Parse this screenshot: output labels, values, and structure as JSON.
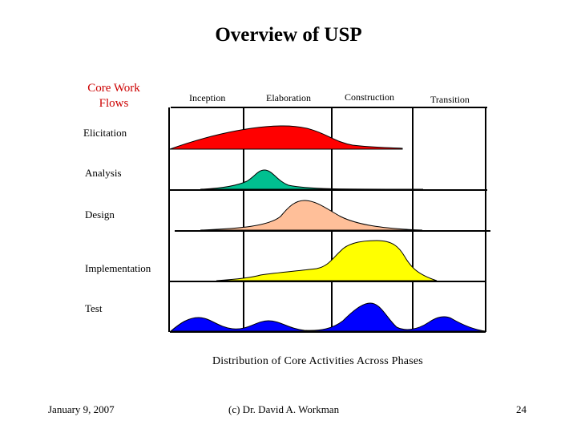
{
  "slide": {
    "title": "Overview of USP",
    "flows_heading_line1": "Core Work",
    "flows_heading_line2": "Flows",
    "caption": "Distribution of Core Activities Across Phases",
    "colors": {
      "title": "#000000",
      "flows_heading": "#cc0000",
      "grid": "#000000"
    }
  },
  "phases": [
    "Inception",
    "Elaboration",
    "Construction",
    "Transition"
  ],
  "workflows": [
    {
      "label": "Elicitation",
      "color": "#ff0000"
    },
    {
      "label": "Analysis",
      "color": "#00c090"
    },
    {
      "label": "Design",
      "color": "#ffbf99"
    },
    {
      "label": "Implementation",
      "color": "#ffff00"
    },
    {
      "label": "Test",
      "color": "#0000ff"
    }
  ],
  "footer": {
    "date": "January 9, 2007",
    "author": "(c) Dr. David A. Workman",
    "page": "24"
  }
}
